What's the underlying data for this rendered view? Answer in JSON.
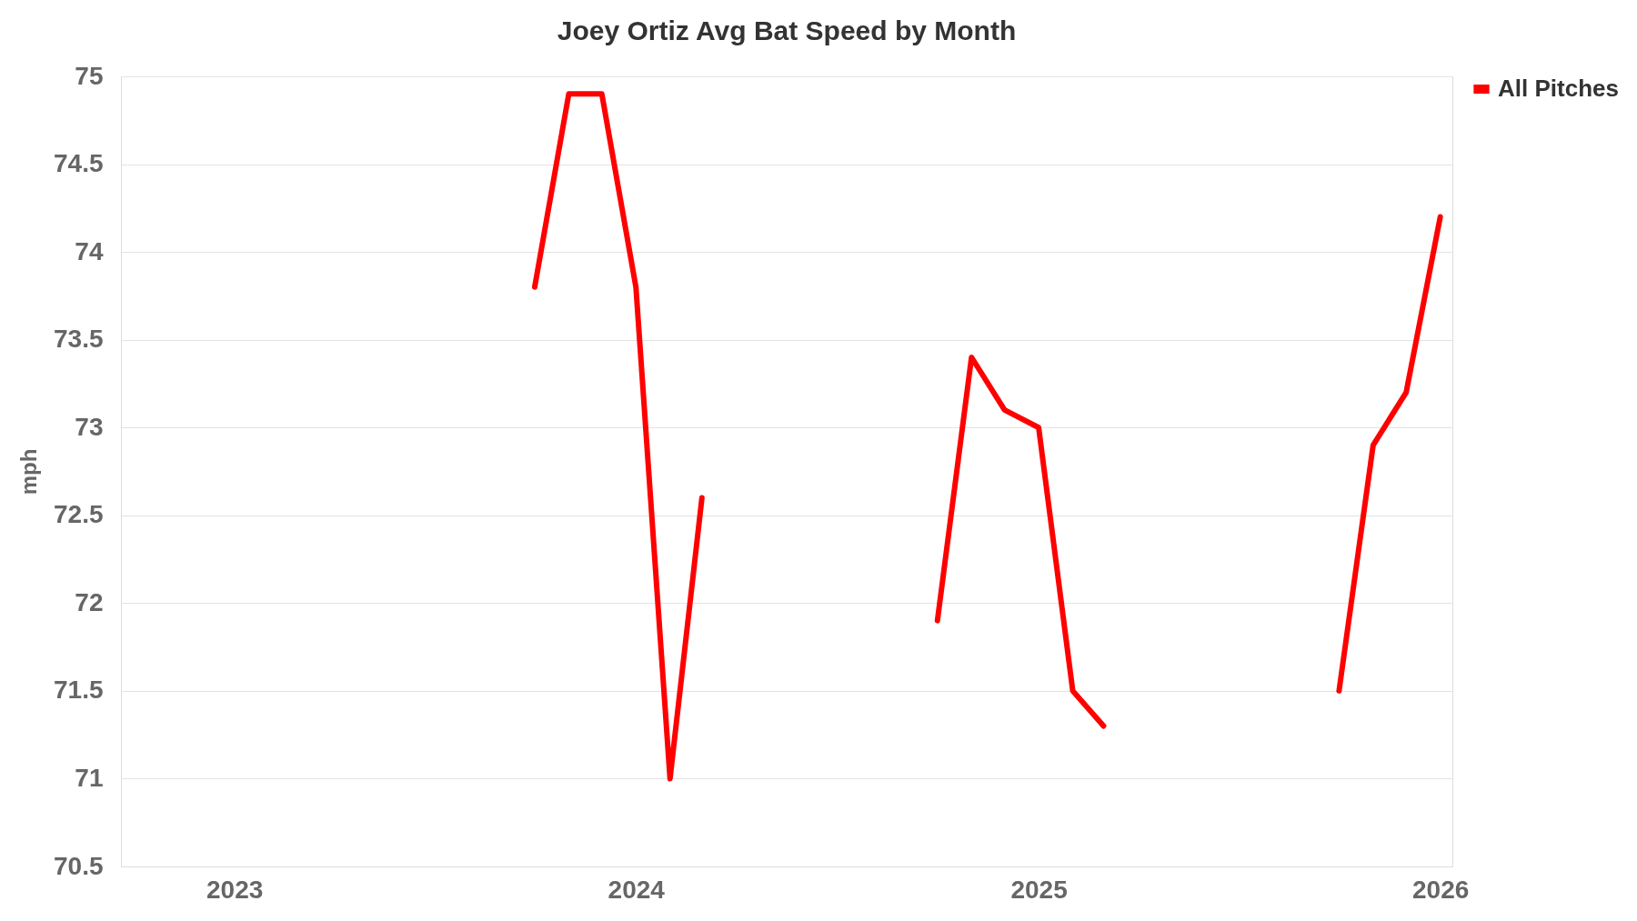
{
  "chart_data": {
    "type": "line",
    "title": "Joey Ortiz Avg Bat Speed by Month",
    "ylabel": "mph",
    "x": [
      "2023-10",
      "2023-11",
      "2023-12",
      "2024-01",
      "2024-02",
      "2024-03",
      "2024-06",
      "2024-10",
      "2024-11",
      "2024-12",
      "2025-01",
      "2025-02",
      "2025-03",
      "2025-06",
      "2025-10",
      "2025-11",
      "2025-12",
      "2026-01"
    ],
    "series": [
      {
        "name": "All Pitches",
        "color": "#ff0000",
        "values": [
          73.8,
          74.9,
          74.9,
          73.8,
          71.0,
          72.6,
          null,
          71.9,
          73.4,
          73.1,
          73.0,
          71.5,
          71.3,
          null,
          71.5,
          72.9,
          73.2,
          74.2
        ]
      }
    ],
    "xlim": [
      "2022-09-20",
      "2026-01-12"
    ],
    "xticks": [
      "2023",
      "2024",
      "2025",
      "2026"
    ],
    "ylim": [
      70.5,
      75
    ],
    "yticks": [
      70.5,
      71,
      71.5,
      72,
      72.5,
      73,
      73.5,
      74,
      74.5,
      75
    ],
    "grid": "y",
    "legend": "right",
    "marker": "none",
    "line_style": "solid"
  }
}
